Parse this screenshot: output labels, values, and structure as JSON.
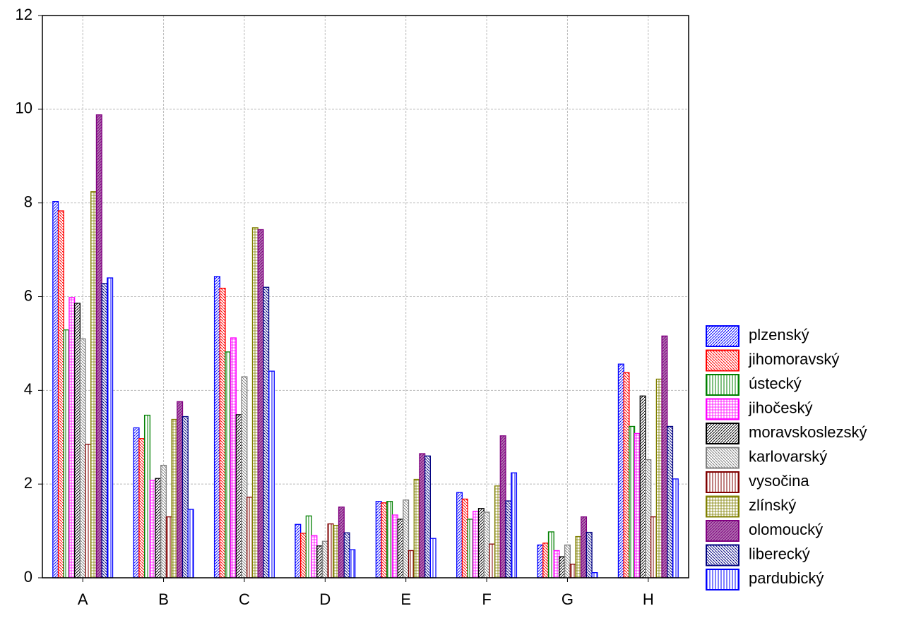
{
  "chart_data": {
    "type": "bar",
    "categories": [
      "A",
      "B",
      "C",
      "D",
      "E",
      "F",
      "G",
      "H"
    ],
    "series": [
      {
        "name": "plzenský",
        "color": "#0000ff",
        "values": [
          8.03,
          3.2,
          6.43,
          1.14,
          1.63,
          1.82,
          0.7,
          4.56
        ]
      },
      {
        "name": "jihomoravský",
        "color": "#ff0000",
        "values": [
          7.83,
          2.97,
          6.18,
          0.95,
          1.6,
          1.68,
          0.74,
          4.38
        ]
      },
      {
        "name": "ústecký",
        "color": "#008000",
        "values": [
          5.29,
          3.47,
          4.82,
          1.32,
          1.63,
          1.25,
          0.98,
          3.23
        ]
      },
      {
        "name": "jihočeský",
        "color": "#ff00ff",
        "values": [
          5.98,
          2.08,
          5.12,
          0.9,
          1.34,
          1.42,
          0.58,
          3.08
        ]
      },
      {
        "name": "moravskoslezský",
        "color": "#000000",
        "values": [
          5.86,
          2.12,
          3.48,
          0.68,
          1.25,
          1.48,
          0.45,
          3.88
        ]
      },
      {
        "name": "karlovarský",
        "color": "#808080",
        "values": [
          5.1,
          2.4,
          4.29,
          0.78,
          1.66,
          1.4,
          0.7,
          2.52
        ]
      },
      {
        "name": "vysočina",
        "color": "#800000",
        "values": [
          2.85,
          1.3,
          1.72,
          1.15,
          0.58,
          0.72,
          0.29,
          1.3
        ]
      },
      {
        "name": "zlínský",
        "color": "#808000",
        "values": [
          8.24,
          3.38,
          7.47,
          1.12,
          2.1,
          1.96,
          0.88,
          4.24
        ]
      },
      {
        "name": "olomoucký",
        "color": "#800080",
        "values": [
          9.88,
          3.76,
          7.43,
          1.51,
          2.65,
          3.03,
          1.3,
          5.16
        ]
      },
      {
        "name": "liberecký",
        "color": "#000080",
        "values": [
          6.28,
          3.44,
          6.2,
          0.96,
          2.6,
          1.64,
          0.97,
          3.23
        ]
      },
      {
        "name": "pardubický",
        "color": "#0000ff",
        "values": [
          6.4,
          1.46,
          4.41,
          0.6,
          0.84,
          2.24,
          0.11,
          2.11
        ]
      }
    ],
    "ylim": [
      0,
      12
    ],
    "yticks": [
      0,
      2,
      4,
      6,
      8,
      10,
      12
    ],
    "grid": true,
    "legend": "right"
  }
}
